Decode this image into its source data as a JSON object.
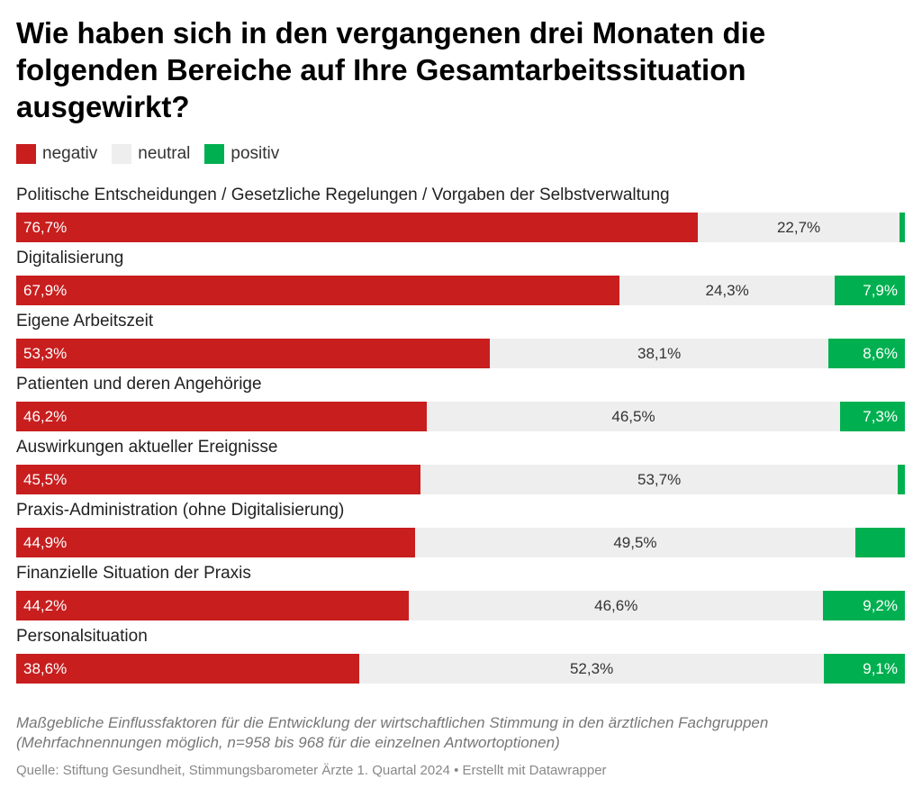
{
  "title": "Wie haben sich in den vergangenen drei Monaten die folgenden Bereiche auf Ihre Gesamtarbeitssituation ausgewirkt?",
  "legend": {
    "negativ": "negativ",
    "neutral": "neutral",
    "positiv": "positiv"
  },
  "colors": {
    "negativ": "#c81e1e",
    "neutral": "#eeeeee",
    "positiv": "#00b050"
  },
  "chart_data": {
    "type": "bar",
    "orientation": "horizontal",
    "stacked": true,
    "categories": [
      "Politische Entscheidungen / Gesetzliche Regelungen / Vorgaben der Selbstverwaltung",
      "Digitalisierung",
      "Eigene Arbeitszeit",
      "Patienten und deren Angehörige",
      "Auswirkungen aktueller Ereignisse",
      "Praxis-Administration (ohne Digitalisierung)",
      "Finanzielle Situation der Praxis",
      "Personalsituation"
    ],
    "series": [
      {
        "name": "negativ",
        "values": [
          76.7,
          67.9,
          53.3,
          46.2,
          45.5,
          44.9,
          44.2,
          38.6
        ]
      },
      {
        "name": "neutral",
        "values": [
          22.7,
          24.3,
          38.1,
          46.5,
          53.7,
          49.5,
          46.6,
          52.3
        ]
      },
      {
        "name": "positiv",
        "values": [
          0.6,
          7.9,
          8.6,
          7.3,
          0.8,
          5.6,
          9.2,
          9.1
        ]
      }
    ],
    "labels": {
      "negativ": [
        "76,7%",
        "67,9%",
        "53,3%",
        "46,2%",
        "45,5%",
        "44,9%",
        "44,2%",
        "38,6%"
      ],
      "neutral": [
        "22,7%",
        "24,3%",
        "38,1%",
        "46,5%",
        "53,7%",
        "49,5%",
        "46,6%",
        "52,3%"
      ],
      "positiv": [
        "",
        "7,9%",
        "8,6%",
        "7,3%",
        "",
        "",
        "9,2%",
        "9,1%"
      ]
    },
    "xlim": [
      0,
      100
    ],
    "legend_position": "top-left",
    "grid": false
  },
  "footnote": "Maßgebliche Einflussfaktoren für die Entwicklung der wirtschaftlichen Stimmung in den ärztlichen Fachgruppen (Mehrfachnennungen möglich, n=958 bis 968 für die einzelnen Antwortoptionen)",
  "source": "Quelle: Stiftung Gesundheit, Stimmungsbarometer Ärzte 1. Quartal 2024 • Erstellt mit Datawrapper"
}
